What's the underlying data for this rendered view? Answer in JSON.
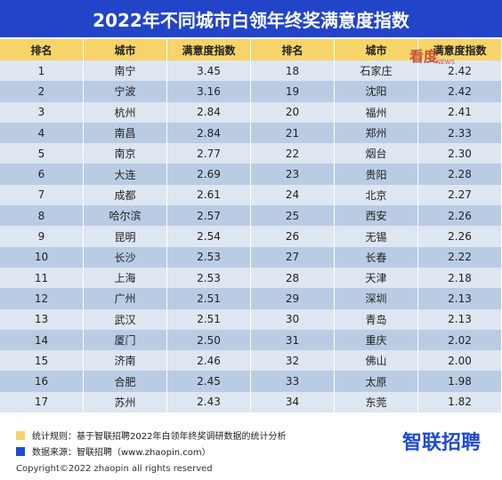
{
  "header": {
    "title": "2022年不同城市白领年终奖满意度指数"
  },
  "table": {
    "columns": [
      "排名",
      "城市",
      "满意度指数",
      "排名",
      "城市",
      "满意度指数"
    ],
    "rows": [
      [
        "1",
        "南宁",
        "3.45",
        "18",
        "石家庄",
        "2.42"
      ],
      [
        "2",
        "宁波",
        "3.16",
        "19",
        "沈阳",
        "2.42"
      ],
      [
        "3",
        "杭州",
        "2.84",
        "20",
        "福州",
        "2.41"
      ],
      [
        "4",
        "南昌",
        "2.84",
        "21",
        "郑州",
        "2.33"
      ],
      [
        "5",
        "南京",
        "2.77",
        "22",
        "烟台",
        "2.30"
      ],
      [
        "6",
        "大连",
        "2.69",
        "23",
        "贵阳",
        "2.28"
      ],
      [
        "7",
        "成都",
        "2.61",
        "24",
        "北京",
        "2.27"
      ],
      [
        "8",
        "哈尔滨",
        "2.57",
        "25",
        "西安",
        "2.26"
      ],
      [
        "9",
        "昆明",
        "2.54",
        "26",
        "无锡",
        "2.26"
      ],
      [
        "10",
        "长沙",
        "2.53",
        "27",
        "长春",
        "2.22"
      ],
      [
        "11",
        "上海",
        "2.53",
        "28",
        "天津",
        "2.18"
      ],
      [
        "12",
        "广州",
        "2.51",
        "29",
        "深圳",
        "2.13"
      ],
      [
        "13",
        "武汉",
        "2.51",
        "30",
        "青岛",
        "2.13"
      ],
      [
        "14",
        "厦门",
        "2.50",
        "31",
        "重庆",
        "2.02"
      ],
      [
        "15",
        "济南",
        "2.46",
        "32",
        "佛山",
        "2.00"
      ],
      [
        "16",
        "合肥",
        "2.45",
        "33",
        "太原",
        "1.98"
      ],
      [
        "17",
        "苏州",
        "2.43",
        "34",
        "东莞",
        "1.82"
      ]
    ]
  },
  "footer": {
    "notes": [
      "统计规则：基于智联招聘2022年白领年终奖调研数据的统计分析",
      "数据来源：智联招聘（www.zhaopin.com）"
    ],
    "logo": "智联招聘",
    "copyright": "Copyright©2022 zhaopin all rights reserved"
  },
  "watermark": {
    "brand": "看度",
    "sub": "NEWS"
  }
}
